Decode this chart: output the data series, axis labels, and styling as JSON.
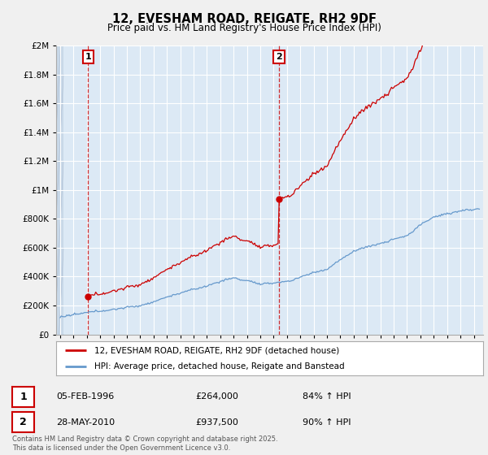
{
  "title": "12, EVESHAM ROAD, REIGATE, RH2 9DF",
  "subtitle": "Price paid vs. HM Land Registry's House Price Index (HPI)",
  "legend_line1": "12, EVESHAM ROAD, REIGATE, RH2 9DF (detached house)",
  "legend_line2": "HPI: Average price, detached house, Reigate and Banstead",
  "purchase1_date": "05-FEB-1996",
  "purchase1_price": "£264,000",
  "purchase1_hpi": "84% ↑ HPI",
  "purchase2_date": "28-MAY-2010",
  "purchase2_price": "£937,500",
  "purchase2_hpi": "90% ↑ HPI",
  "footer": "Contains HM Land Registry data © Crown copyright and database right 2025.\nThis data is licensed under the Open Government Licence v3.0.",
  "hpi_color": "#6699cc",
  "price_color": "#cc0000",
  "dashed_line_color": "#cc0000",
  "background_color": "#f0f0f0",
  "plot_bg_color": "#dce9f5",
  "ylim": [
    0,
    2000000
  ],
  "xlim_start": 1993.7,
  "xlim_end": 2025.7,
  "purchase1_x": 1996.09,
  "purchase1_y": 264000,
  "purchase2_x": 2010.41,
  "purchase2_y": 937500,
  "grid_color": "#bbccdd",
  "hatch_color": "#c8d8e8"
}
